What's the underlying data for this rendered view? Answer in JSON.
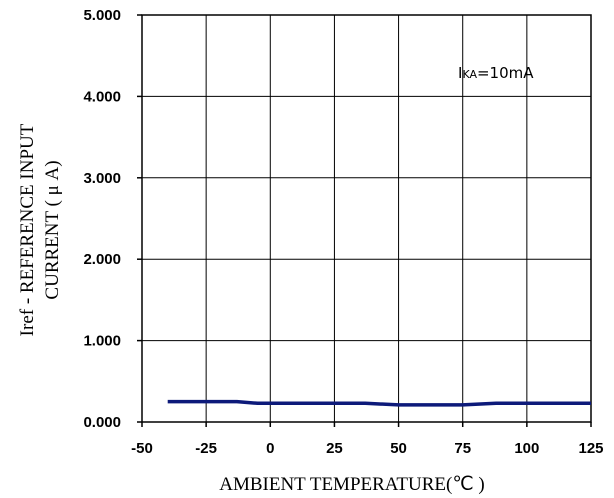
{
  "chart_data": {
    "type": "line",
    "xlabel": "AMBIENT TEMPERATURE(℃ )",
    "ylabel_line1": "Iref - REFERENCE INPUT",
    "ylabel_line2": "CURRENT ( μ A)",
    "annotation": {
      "prefix": "I",
      "sub": "KA",
      "rest": "=10mA"
    },
    "xlim": [
      -50,
      125
    ],
    "ylim": [
      0,
      5
    ],
    "x_ticks": [
      -50,
      -25,
      0,
      25,
      50,
      75,
      100,
      125
    ],
    "x_tick_labels": [
      "-50",
      "-25",
      "0",
      "25",
      "50",
      "75",
      "100",
      "125"
    ],
    "y_ticks": [
      0,
      1,
      2,
      3,
      4,
      5
    ],
    "y_tick_labels": [
      "0.000",
      "1.000",
      "2.000",
      "3.000",
      "4.000",
      "5.000"
    ],
    "grid": true,
    "series": [
      {
        "color": "#0d1a7a",
        "x": [
          -40,
          -25,
          -13,
          -5,
          0,
          25,
          37,
          50,
          62,
          75,
          88,
          100,
          112,
          125
        ],
        "y": [
          0.25,
          0.25,
          0.25,
          0.23,
          0.23,
          0.23,
          0.23,
          0.21,
          0.21,
          0.21,
          0.23,
          0.23,
          0.23,
          0.23
        ]
      }
    ]
  }
}
